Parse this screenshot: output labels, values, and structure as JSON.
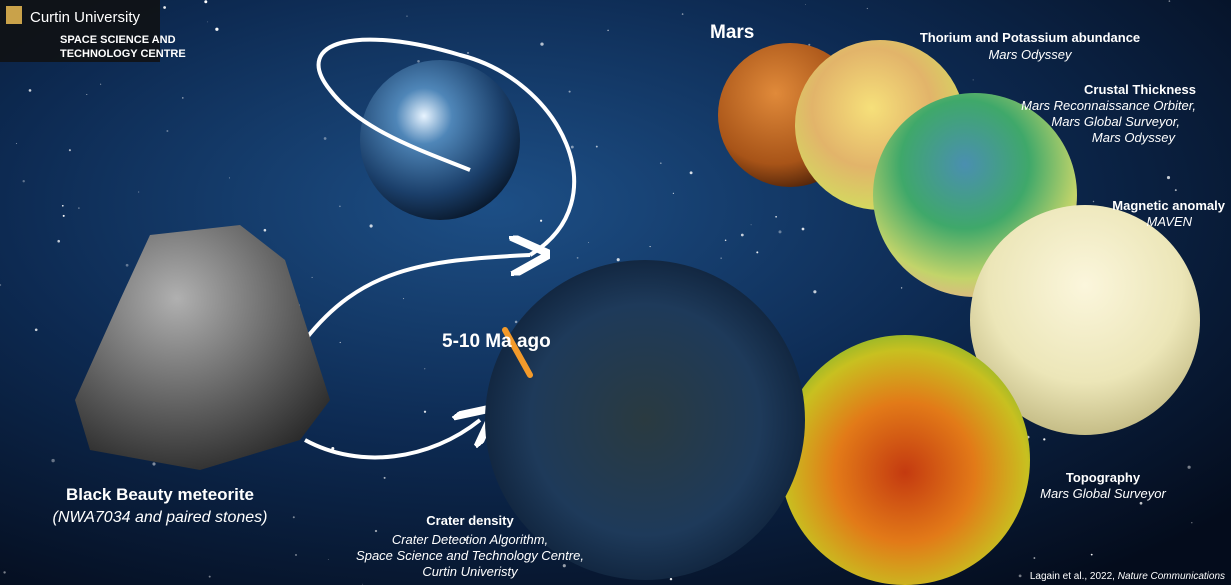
{
  "logo": {
    "university": "Curtin University",
    "centre_line1": "SPACE SCIENCE AND",
    "centre_line2": "TECHNOLOGY CENTRE"
  },
  "meteorite": {
    "title": "Black Beauty meteorite",
    "subtitle": "(NWA7034 and paired stones)"
  },
  "event": "5-10 Ma ago",
  "mars": "Mars",
  "datasets": [
    {
      "title": "Thorium and Potassium abundance",
      "sources": [
        "Mars Odyssey"
      ]
    },
    {
      "title": "Crustal Thickness",
      "sources": [
        "Mars Reconnaissance Orbiter,",
        "Mars Global Surveyor,",
        "Mars Odyssey"
      ]
    },
    {
      "title": "Magnetic anomaly",
      "sources": [
        "MAVEN"
      ]
    },
    {
      "title": "Topography",
      "sources": [
        "Mars Global Surveyor"
      ]
    },
    {
      "title": "Crater density",
      "sources": [
        "Crater Detection Algorithm,",
        "Space Science and Technology Centre,",
        "Curtin Univeristy"
      ]
    }
  ],
  "credit": {
    "authors": "Lagain et al., 2022,",
    "journal": "Nature Communications"
  }
}
